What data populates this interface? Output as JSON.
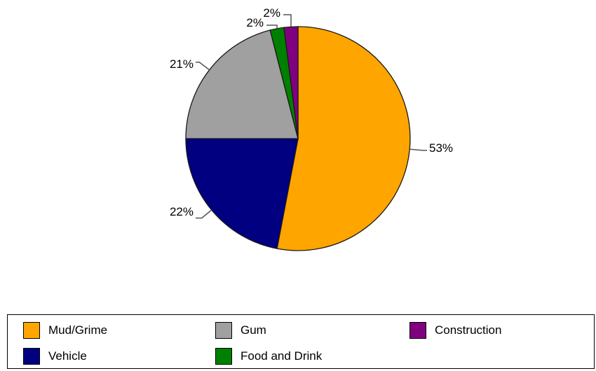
{
  "chart_data": {
    "type": "pie",
    "title": "",
    "slices": [
      {
        "label": "Mud/Grime",
        "value": 53,
        "value_label": "53%",
        "color": "#FFA500"
      },
      {
        "label": "Vehicle",
        "value": 22,
        "value_label": "22%",
        "color": "#000080"
      },
      {
        "label": "Gum",
        "value": 21,
        "value_label": "21%",
        "color": "#A0A0A0"
      },
      {
        "label": "Food and Drink",
        "value": 2,
        "value_label": "2%",
        "color": "#008000"
      },
      {
        "label": "Construction",
        "value": 2,
        "value_label": "2%",
        "color": "#800080"
      }
    ],
    "start_angle_deg": 0,
    "direction": "clockwise",
    "legend": {
      "position": "bottom",
      "order": [
        "Mud/Grime",
        "Gum",
        "Construction",
        "Vehicle",
        "Food and Drink"
      ]
    }
  }
}
